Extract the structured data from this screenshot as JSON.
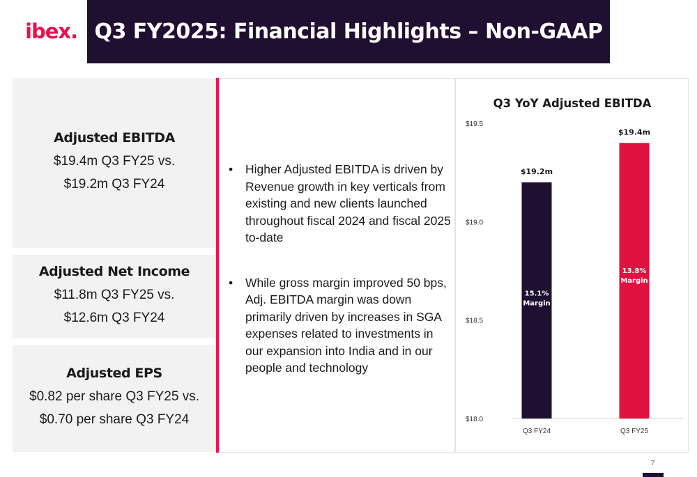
{
  "logo": "ibex.",
  "title": "Q3 FY2025: Financial Highlights – Non-GAAP",
  "cards": [
    {
      "heading": "Adjusted EBITDA",
      "lines": [
        "$19.4m Q3 FY25 vs.",
        "$19.2m Q3 FY24"
      ]
    },
    {
      "heading": "Adjusted Net Income",
      "lines": [
        "$11.8m Q3 FY25 vs.",
        "$12.6m Q3 FY24"
      ]
    },
    {
      "heading": "Adjusted EPS",
      "lines": [
        "$0.82 per share Q3 FY25 vs.",
        "$0.70 per share Q3 FY24"
      ]
    }
  ],
  "bullets": [
    {
      "marker": "•",
      "text": "Higher Adjusted EBITDA is driven by Revenue growth in key verticals from existing and new clients launched throughout fiscal 2024 and fiscal 2025 to-date"
    },
    {
      "marker": "•",
      "text": "While gross margin improved 50 bps, Adj. EBITDA margin was down primarily driven by increases in SGA expenses related to investments in our expansion into India and in our people  and technology"
    }
  ],
  "chart_data": {
    "type": "bar",
    "title": "Q3 YoY Adjusted EBITDA",
    "categories": [
      "Q3 FY24",
      "Q3 FY25"
    ],
    "values": [
      19.2,
      19.4
    ],
    "data_labels": [
      "$19.2m",
      "$19.4m"
    ],
    "inner_labels": [
      [
        "15.1%",
        "Margin"
      ],
      [
        "13.8%",
        "Margin"
      ]
    ],
    "bar_colors": [
      "#1f0f30",
      "#e0103f"
    ],
    "ylim": [
      18.0,
      19.5
    ],
    "yticks": [
      18.0,
      18.5,
      19.0,
      19.5
    ],
    "ytick_labels": [
      "$18.0",
      "$18.5",
      "$19.0",
      "$19.5"
    ],
    "grid": false
  },
  "page_number": "7"
}
